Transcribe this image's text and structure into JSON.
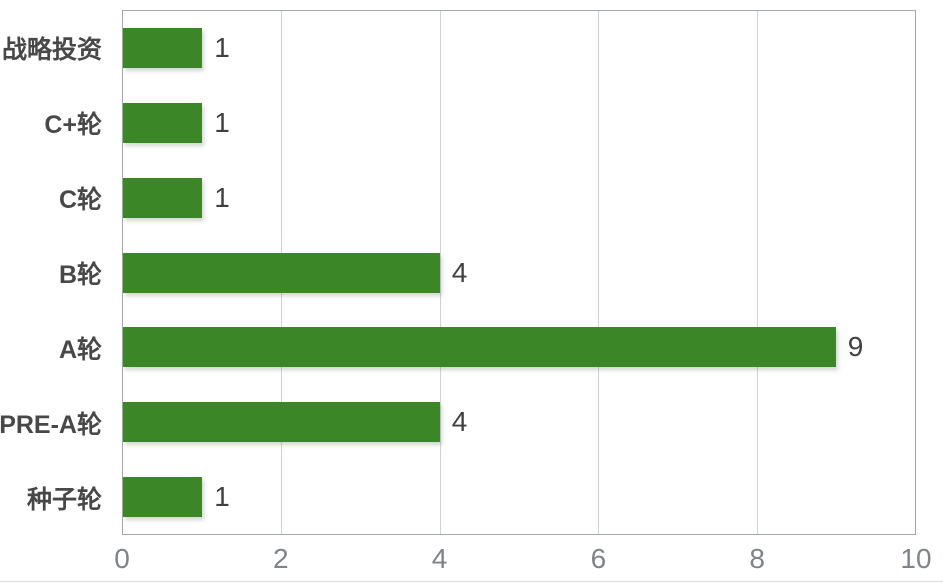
{
  "chart_data": {
    "type": "bar",
    "orientation": "horizontal",
    "title": "",
    "categories": [
      "战略投资",
      "C+轮",
      "C轮",
      "B轮",
      "A轮",
      "PRE-A轮",
      "种子轮"
    ],
    "values": [
      1,
      1,
      1,
      4,
      9,
      4,
      1
    ],
    "xlabel": "",
    "ylabel": "",
    "xlim": [
      0,
      10
    ],
    "xticks": [
      0,
      2,
      4,
      6,
      8,
      10
    ],
    "grid": true,
    "legend": false,
    "colors": {
      "bar": "#3b8728",
      "value_label": "#404040",
      "category_label": "#484848",
      "tick_label": "#7f8487",
      "gridline": "#ced2d5",
      "plot_border": "#a3a8ac"
    }
  }
}
